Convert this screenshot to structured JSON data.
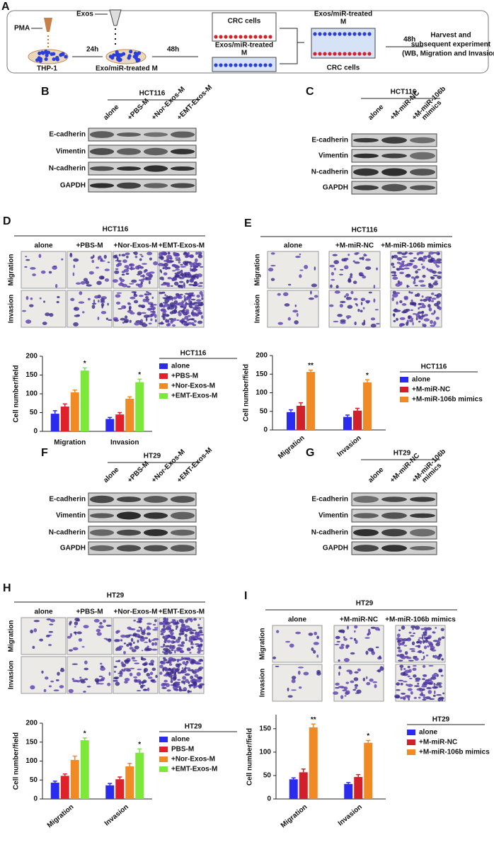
{
  "panel_a": {
    "label": "A",
    "pma": "PMA",
    "exos": "Exos",
    "thp1": "THP-1",
    "time_1": "24h",
    "treated_m": "Exo/miR-treated M",
    "time_2": "48h",
    "crc_top": "CRC cells",
    "exos_treated_1": "Exos/miR-treated",
    "m_1": "M",
    "exos_treated_2": "Exos/miR-treated",
    "m_2": "M",
    "crc_bottom": "CRC cells",
    "time_3": "48h",
    "harvest": [
      "Harvest and",
      "subsequent experiment",
      "(WB, Migration and Invasion)"
    ]
  },
  "blots": [
    {
      "label": "B",
      "cell_line": "HCT116",
      "lanes": [
        "alone",
        "+PBS-M",
        "+Nor-Exos-M",
        "+EMT-Exos-M"
      ],
      "proteins": [
        "E-cadherin",
        "Vimentin",
        "N-cadherin",
        "GAPDH"
      ]
    },
    {
      "label": "C",
      "cell_line": "HCT116",
      "lanes": [
        "alone",
        "+M-miR-NC",
        "+M-miR-106b",
        "mimics"
      ],
      "proteins": [
        "E-cadherin",
        "Vimentin",
        "N-cadherin",
        "GAPDH"
      ]
    },
    {
      "label": "F",
      "cell_line": "HT29",
      "lanes": [
        "alone",
        "+PBS-M",
        "+Nor-Exos-M",
        "+EMT-Exos-M"
      ],
      "proteins": [
        "E-cadherin",
        "Vimentin",
        "N-cadherin",
        "GAPDH"
      ]
    },
    {
      "label": "G",
      "cell_line": "HT29",
      "lanes": [
        "alone",
        "+M-miR-NC",
        "+M-miR-106b",
        "mimics"
      ],
      "proteins": [
        "E-cadherin",
        "Vimentin",
        "N-cadherin",
        "GAPDH"
      ]
    }
  ],
  "micrographs": [
    {
      "label": "D",
      "cell_line": "HCT116",
      "columns": [
        "alone",
        "+PBS-M",
        "+Nor-Exos-M",
        "+EMT-Exos-M"
      ],
      "rows": [
        "Migration",
        "Invasion"
      ]
    },
    {
      "label": "E",
      "cell_line": "HCT116",
      "columns": [
        "alone",
        "+M-miR-NC",
        "+M-miR-106b mimics"
      ],
      "rows": [
        "Migration",
        "Invasion"
      ]
    },
    {
      "label": "H",
      "cell_line": "HT29",
      "columns": [
        "alone",
        "+PBS-M",
        "+Nor-Exos-M",
        "+EMT-Exos-M"
      ],
      "rows": [
        "Migration",
        "Invasion"
      ]
    },
    {
      "label": "I",
      "cell_line": "HT29",
      "columns": [
        "alone",
        "+M-miR-NC",
        "+M-miR-106b mimics"
      ],
      "rows": [
        "Migration",
        "Invasion"
      ]
    }
  ],
  "chart_data": [
    {
      "type": "bar",
      "ylabel": "Cell number/field",
      "legend_title": "HCT116",
      "categories": [
        "Migration",
        "Invasion"
      ],
      "ylim": [
        0,
        200
      ],
      "yticks": [
        0,
        50,
        100,
        150,
        200
      ],
      "series": [
        {
          "name": "alone",
          "color": "#2b2bf0",
          "values": [
            47,
            33
          ],
          "errors": [
            8,
            4
          ]
        },
        {
          "name": "+PBS-M",
          "color": "#e0202a",
          "values": [
            66,
            45
          ],
          "errors": [
            7,
            5
          ]
        },
        {
          "name": "+Nor-Exos-M",
          "color": "#f08a24",
          "values": [
            104,
            87
          ],
          "errors": [
            6,
            5
          ]
        },
        {
          "name": "+EMT-Exos-M",
          "color": "#7be83a",
          "values": [
            162,
            131
          ],
          "errors": [
            7,
            8
          ],
          "significance": [
            "*",
            "*"
          ]
        }
      ]
    },
    {
      "type": "bar",
      "ylabel": "Cell number/field",
      "legend_title": "HCT116",
      "categories": [
        "Migration",
        "Invasion"
      ],
      "ylim": [
        0,
        200
      ],
      "yticks": [
        0,
        50,
        100,
        150,
        200
      ],
      "series": [
        {
          "name": "alone",
          "color": "#2b2bf0",
          "values": [
            48,
            35
          ],
          "errors": [
            6,
            5
          ]
        },
        {
          "name": "+M-miR-NC",
          "color": "#d0202a",
          "values": [
            65,
            52
          ],
          "errors": [
            8,
            6
          ]
        },
        {
          "name": "+M-miR-106b mimics",
          "color": "#f08a24",
          "values": [
            156,
            128
          ],
          "errors": [
            5,
            7
          ],
          "significance": [
            "**",
            "*"
          ]
        }
      ]
    },
    {
      "type": "bar",
      "ylabel": "Cell number/field",
      "legend_title": "HT29",
      "categories": [
        "Migration",
        "Invasion"
      ],
      "ylim": [
        0,
        200
      ],
      "yticks": [
        0,
        50,
        100,
        150,
        200
      ],
      "series": [
        {
          "name": "alone",
          "color": "#2b2bf0",
          "values": [
            43,
            36
          ],
          "errors": [
            4,
            5
          ]
        },
        {
          "name": "PBS-M",
          "color": "#e0202a",
          "values": [
            61,
            52
          ],
          "errors": [
            5,
            6
          ]
        },
        {
          "name": "+Nor-Exos-M",
          "color": "#f08a24",
          "values": [
            103,
            86
          ],
          "errors": [
            10,
            8
          ]
        },
        {
          "name": "+EMT-Exos-M",
          "color": "#7be83a",
          "values": [
            155,
            122
          ],
          "errors": [
            6,
            10
          ],
          "significance": [
            "*",
            "*"
          ]
        }
      ]
    },
    {
      "type": "bar",
      "ylabel": "Cell number/field",
      "legend_title": "HT29",
      "categories": [
        "Migration",
        "Invasion"
      ],
      "ylim": [
        0,
        180
      ],
      "yticks": [
        0,
        50,
        100,
        150
      ],
      "series": [
        {
          "name": "alone",
          "color": "#2b2bf0",
          "values": [
            42,
            32
          ],
          "errors": [
            3,
            3
          ]
        },
        {
          "name": "+M-miR-NC",
          "color": "#d0202a",
          "values": [
            57,
            47
          ],
          "errors": [
            7,
            5
          ]
        },
        {
          "name": "+M-miR-106b mimics",
          "color": "#f08a24",
          "values": [
            153,
            120
          ],
          "errors": [
            7,
            5
          ],
          "significance": [
            "**",
            "*"
          ]
        }
      ]
    }
  ]
}
